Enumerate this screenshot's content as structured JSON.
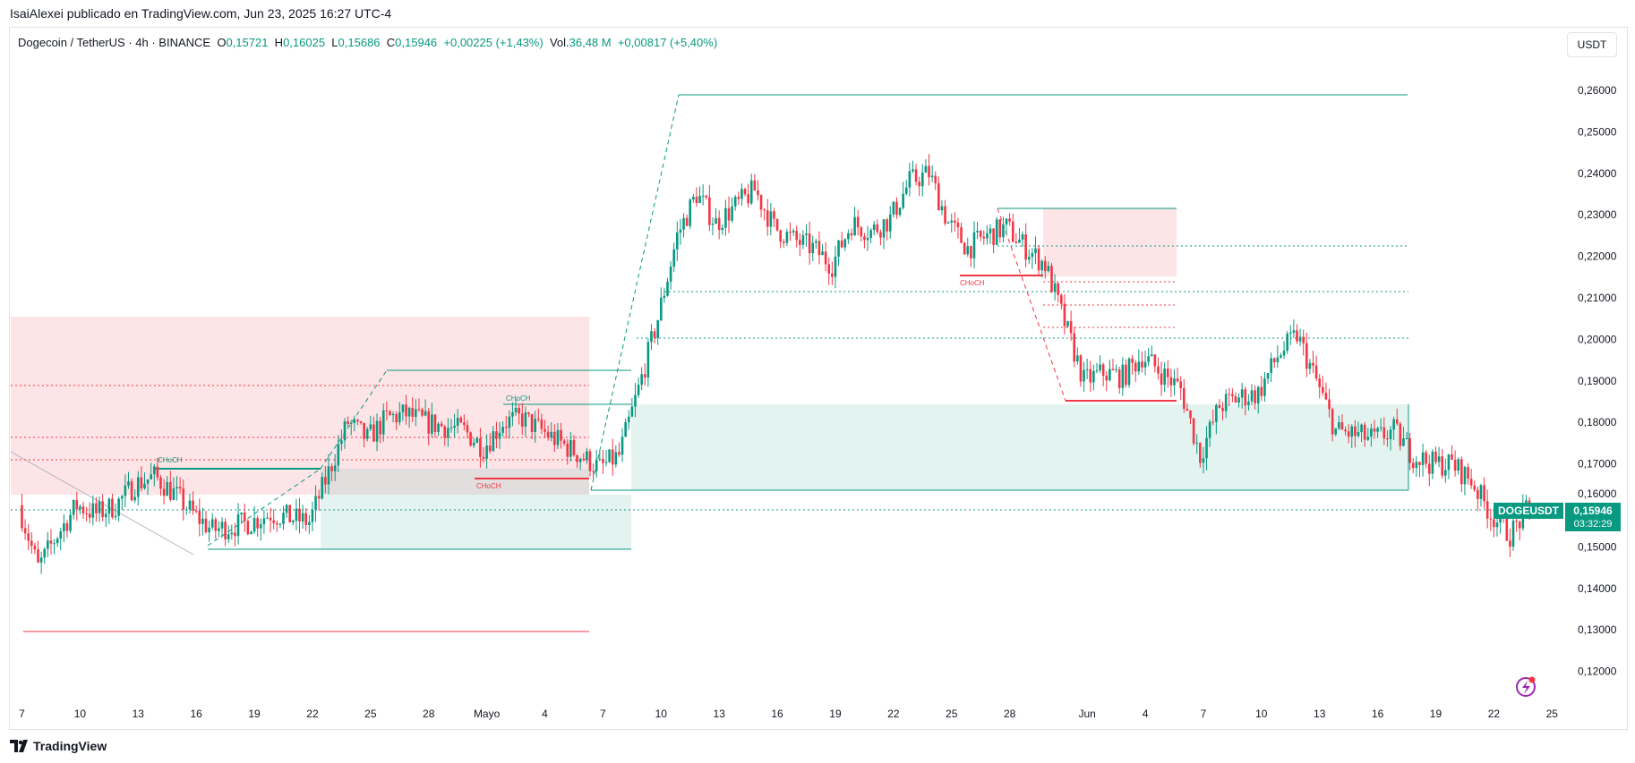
{
  "header": {
    "published": "IsaiAlexei publicado en TradingView.com, Jun 23, 2025 16:27 UTC-4"
  },
  "legend": {
    "symbol": "Dogecoin / TetherUS · 4h · BINANCE",
    "o_label": "O",
    "o": "0,15721",
    "h_label": "H",
    "h": "0,16025",
    "l_label": "L",
    "l": "0,15686",
    "c_label": "C",
    "c": "0,15946",
    "change": "+0,00225 (+1,43%)",
    "vol_label": "Vol.",
    "vol": "36,48 M",
    "vol_change": "+0,00817 (+5,40%)"
  },
  "currency_button": "USDT",
  "price_tag": {
    "symbol": "DOGEUSDT",
    "price": "0,15946",
    "countdown": "03:32:29"
  },
  "annotations": {
    "choch1": "CHoCH",
    "choch2": "CHoCH",
    "choch3": "CHoCH",
    "choch4": "CHoCH"
  },
  "footer": {
    "brand": "TradingView"
  },
  "colors": {
    "up": "#089981",
    "down": "#f23645",
    "supply": "#fde4e6",
    "demand": "#e3f4f0"
  },
  "chart_data": {
    "type": "candlestick",
    "title": "Dogecoin / TetherUS 4h",
    "ylim": [
      0.115,
      0.265
    ],
    "yticks": [
      "0,26000",
      "0,25000",
      "0,24000",
      "0,23000",
      "0,22000",
      "0,21000",
      "0,20000",
      "0,19000",
      "0,18000",
      "0,17000",
      "0,16000",
      "0,15000",
      "0,14000",
      "0,13000",
      "0,12000"
    ],
    "ytick_values": [
      0.26,
      0.25,
      0.24,
      0.23,
      0.22,
      0.21,
      0.2,
      0.19,
      0.18,
      0.17,
      0.16,
      0.15,
      0.14,
      0.13,
      0.12
    ],
    "xticks": [
      "7",
      "10",
      "13",
      "16",
      "19",
      "22",
      "25",
      "28",
      "Mayo",
      "4",
      "7",
      "10",
      "13",
      "16",
      "19",
      "22",
      "25",
      "28",
      "Jun",
      "4",
      "7",
      "10",
      "13",
      "16",
      "19",
      "22",
      "25"
    ],
    "xtick_days": [
      0,
      3,
      6,
      9,
      12,
      15,
      18,
      21,
      24,
      27,
      30,
      33,
      36,
      39,
      42,
      45,
      48,
      51,
      55,
      58,
      61,
      64,
      67,
      70,
      73,
      76,
      79
    ],
    "first_day": "Apr 7",
    "daily_close": [
      0.145,
      0.153,
      0.16,
      0.158,
      0.16,
      0.165,
      0.167,
      0.163,
      0.158,
      0.154,
      0.155,
      0.156,
      0.158,
      0.157,
      0.156,
      0.168,
      0.18,
      0.176,
      0.181,
      0.182,
      0.18,
      0.179,
      0.178,
      0.174,
      0.18,
      0.181,
      0.178,
      0.175,
      0.172,
      0.169,
      0.172,
      0.188,
      0.205,
      0.225,
      0.235,
      0.228,
      0.232,
      0.236,
      0.227,
      0.224,
      0.222,
      0.218,
      0.228,
      0.226,
      0.229,
      0.238,
      0.24,
      0.228,
      0.222,
      0.225,
      0.227,
      0.222,
      0.218,
      0.204,
      0.19,
      0.192,
      0.191,
      0.196,
      0.192,
      0.188,
      0.172,
      0.184,
      0.186,
      0.187,
      0.196,
      0.201,
      0.19,
      0.178,
      0.177,
      0.176,
      0.178,
      0.172,
      0.17,
      0.17,
      0.166,
      0.158,
      0.153,
      0.1595
    ],
    "first_open": 0.16,
    "last_price": 0.15946
  }
}
